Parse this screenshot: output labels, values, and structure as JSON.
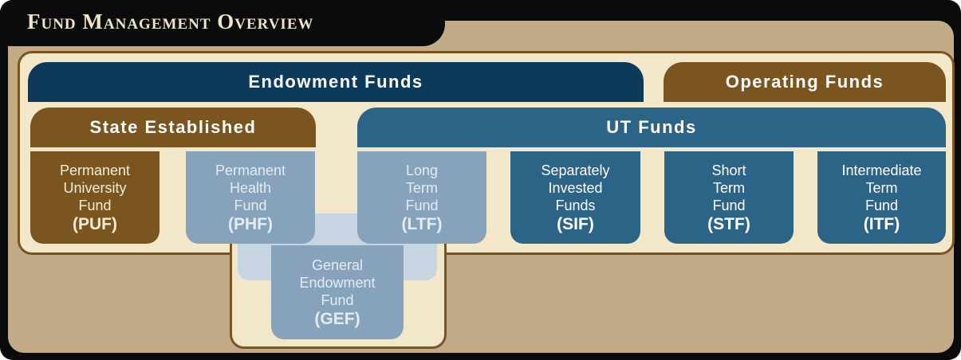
{
  "header": {
    "title": "Fund Management Overview"
  },
  "groups": {
    "endowment": "Endowment Funds",
    "operating": "Operating Funds",
    "state": "State Established",
    "ut": "UT Funds"
  },
  "funds": [
    {
      "lines": [
        "Permanent",
        "University",
        "Fund"
      ],
      "abbr": "(PUF)"
    },
    {
      "lines": [
        "Permanent",
        "Health",
        "Fund"
      ],
      "abbr": "(PHF)"
    },
    {
      "lines": [
        "Long",
        "Term",
        "Fund"
      ],
      "abbr": "(LTF)"
    },
    {
      "lines": [
        "Separately",
        "Invested",
        "Funds"
      ],
      "abbr": "(SIF)"
    },
    {
      "lines": [
        "Short",
        "Term",
        "Fund"
      ],
      "abbr": "(STF)"
    },
    {
      "lines": [
        "Intermediate",
        "Term",
        "Fund"
      ],
      "abbr": "(ITF)"
    },
    {
      "lines": [
        "General",
        "Endowment",
        "Fund"
      ],
      "abbr": "(GEF)"
    }
  ]
}
